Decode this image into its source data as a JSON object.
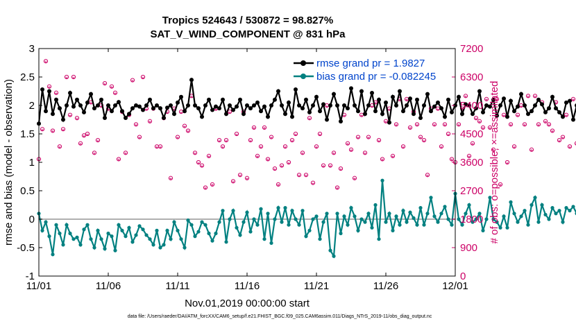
{
  "chart_data": {
    "type": "line",
    "title_line1": "Tropics 524643 / 530872 = 98.827%",
    "title_line2": "SAT_V_WIND_COMPONENT @ 831 hPa",
    "xlabel": "Nov.01,2019 00:00:00 start",
    "ylabel_left": "rmse and bias (model - observation)",
    "ylabel_right": "# of obs: o=possible; ×=assimilated",
    "x_ticks": [
      "11/01",
      "11/06",
      "11/11",
      "11/16",
      "11/21",
      "11/26",
      "12/01"
    ],
    "x_range_days": [
      0,
      30
    ],
    "ylim_left": [
      -1,
      3
    ],
    "y_ticks_left": [
      "-1",
      "-0.5",
      "0",
      "0.5",
      "1",
      "1.5",
      "2",
      "2.5",
      "3"
    ],
    "ylim_right": [
      0,
      7200
    ],
    "y_ticks_right": [
      "0",
      "900",
      "1800",
      "2700",
      "3600",
      "4500",
      "5400",
      "6300",
      "7200"
    ],
    "legend": {
      "rmse_label": "rmse grand pr = 1.9827",
      "bias_label": "bias grand pr = -0.082245",
      "placement": "top-right"
    },
    "colors": {
      "rmse": "#000000",
      "bias": "#008080",
      "obs": "#cc0066",
      "legend_text": "#0044cc",
      "zero_line": "#b0b0b0"
    },
    "x_step_days": 0.25,
    "rmse": [
      1.68,
      2.28,
      1.9,
      2.25,
      1.85,
      2.1,
      1.95,
      1.75,
      2.0,
      2.22,
      1.98,
      2.1,
      2.0,
      1.88,
      2.05,
      2.2,
      1.95,
      2.0,
      2.1,
      1.78,
      2.0,
      1.9,
      2.0,
      2.06,
      1.9,
      1.78,
      1.85,
      1.95,
      2.0,
      1.98,
      1.92,
      2.0,
      2.1,
      1.95,
      2.0,
      1.95,
      1.78,
      1.96,
      2.0,
      1.85,
      2.05,
      2.15,
      1.9,
      2.0,
      2.45,
      2.0,
      1.95,
      1.8,
      2.0,
      2.1,
      1.92,
      1.98,
      1.95,
      2.1,
      1.85,
      2.0,
      1.92,
      1.98,
      2.1,
      1.85,
      2.0,
      1.95,
      2.0,
      2.05,
      1.9,
      1.98,
      1.8,
      2.0,
      2.1,
      2.25,
      2.0,
      1.85,
      2.05,
      1.8,
      2.28,
      2.0,
      1.95,
      2.1,
      1.88,
      2.0,
      2.15,
      1.9,
      2.02,
      1.75,
      2.0,
      2.2,
      2.0,
      1.72,
      2.0,
      1.95,
      2.3,
      2.0,
      1.9,
      2.25,
      1.85,
      2.0,
      2.22,
      1.9,
      2.1,
      1.85,
      2.05,
      1.7,
      2.15,
      2.0,
      2.25,
      1.9,
      2.0,
      2.12,
      1.85,
      2.1,
      1.78,
      2.0,
      2.2,
      1.9,
      1.98,
      2.05,
      1.95,
      1.8,
      2.1,
      1.88,
      2.0,
      2.15,
      1.85,
      2.02,
      2.0,
      1.85,
      1.95,
      2.25,
      1.88,
      2.0,
      1.98,
      2.1,
      1.82,
      2.0,
      2.12,
      1.8,
      2.08,
      1.9,
      1.98,
      2.2,
      2.0,
      1.85,
      1.9,
      2.0,
      2.1,
      2.02,
      1.88,
      1.95,
      2.15,
      1.95,
      1.88,
      1.8,
      2.05,
      2.08,
      1.75,
      2.0,
      1.9,
      2.05,
      2.0,
      1.78,
      1.95,
      1.98,
      1.98,
      1.95
    ],
    "bias": [
      0.1,
      -0.2,
      -0.05,
      -0.3,
      -0.62,
      -0.1,
      -0.25,
      -0.45,
      -0.1,
      -0.25,
      -0.35,
      -0.32,
      -0.45,
      -0.18,
      -0.1,
      -0.35,
      -0.5,
      -0.2,
      -0.35,
      -0.52,
      -0.25,
      -0.3,
      -0.55,
      -0.1,
      -0.2,
      -0.3,
      -0.15,
      -0.4,
      -0.28,
      -0.12,
      -0.18,
      -0.28,
      -0.35,
      -0.45,
      -0.2,
      -0.5,
      -0.45,
      -0.2,
      -0.35,
      -0.05,
      -0.2,
      -0.35,
      -0.5,
      -0.02,
      -0.1,
      -0.3,
      -0.22,
      -0.05,
      -0.1,
      -0.25,
      -0.38,
      -0.25,
      -0.05,
      0.15,
      -0.4,
      0.0,
      0.15,
      -0.15,
      -0.28,
      -0.05,
      0.12,
      -0.22,
      0.0,
      -0.1,
      0.18,
      -0.35,
      0.1,
      -0.42,
      0.0,
      0.2,
      -0.05,
      0.2,
      -0.1,
      0.15,
      0.0,
      -0.1,
      0.15,
      -0.3,
      -0.2,
      0.0,
      0.05,
      -0.35,
      -0.05,
      0.1,
      -0.55,
      -0.65,
      0.1,
      -0.25,
      0.05,
      -0.1,
      0.2,
      0.05,
      -0.2,
      0.0,
      -0.05,
      0.1,
      -0.15,
      0.25,
      -0.35,
      0.68,
      -0.05,
      0.1,
      -0.2,
      0.05,
      -0.1,
      0.15,
      -0.05,
      0.12,
      0.02,
      -0.1,
      0.2,
      -0.1,
      0.1,
      0.38,
      0.05,
      -0.05,
      0.1,
      0.22,
      0.0,
      -0.1,
      0.45,
      0.0,
      -0.1,
      0.1,
      0.25,
      -0.05,
      0.0,
      0.1,
      -0.2,
      0.0,
      0.38,
      0.0,
      -0.05,
      -0.15,
      0.05,
      -0.15,
      0.3,
      0.1,
      -0.05,
      0.05,
      0.15,
      -0.1,
      0.25,
      0.38,
      -0.05,
      0.25,
      0.08,
      0.0,
      0.2,
      0.1,
      0.15,
      -0.05,
      0.2,
      0.15,
      0.22,
      0.1,
      0.3,
      -0.05,
      0.15,
      -0.1,
      0.05,
      -0.1,
      -0.3,
      -0.32,
      -0.35
    ],
    "obs_possible": [
      3700,
      4650,
      6800,
      6000,
      4600,
      5800,
      4100,
      4650,
      6300,
      5100,
      6300,
      5000,
      4200,
      4450,
      4500,
      5500,
      3900,
      4300,
      5400,
      6100,
      5300,
      6000,
      5800,
      3700,
      5200,
      3900,
      5100,
      6200,
      4800,
      4400,
      6300,
      5300,
      4900,
      5300,
      4100,
      4100,
      5000,
      5200,
      3100,
      5300,
      4400,
      5200,
      4750,
      4600,
      5700,
      3900,
      3600,
      3500,
      2800,
      3800,
      2900,
      5300,
      4300,
      4100,
      4300,
      5200,
      3000,
      4500,
      3200,
      5200,
      3100,
      4300,
      4700,
      3800,
      4100,
      4700,
      3700,
      4400,
      3400,
      2900,
      3500,
      4100,
      3600,
      4300,
      4500,
      3200,
      3900,
      3200,
      5000,
      2950,
      4100,
      4500,
      3500,
      5400,
      3500,
      3900,
      2800,
      3400,
      5100,
      4200,
      4000,
      3100,
      4400,
      5100,
      3900,
      4400,
      5400,
      5500,
      4300,
      3700,
      4900,
      5300,
      3800,
      4800,
      5600,
      4100,
      5600,
      4700,
      5200,
      4800,
      4400,
      4300,
      3200,
      5300,
      4800,
      5300,
      4100,
      4800,
      4500,
      3700,
      3600,
      4800,
      5300,
      5700,
      3800,
      4200,
      5000,
      4900,
      4700,
      5600,
      4700,
      4000,
      5600,
      2900,
      5100,
      3600,
      4800,
      4100,
      5100,
      5400,
      4800,
      5700,
      4000,
      5700,
      4800,
      5500,
      4900,
      4800,
      4600,
      5500,
      4300,
      4400,
      5100,
      4100,
      5600,
      4200,
      5600,
      4800,
      5600,
      4800,
      4200,
      4600,
      5000,
      4900,
      5300,
      3700,
      3700,
      4600,
      5500,
      4600,
      5000
    ],
    "obs_assim": [
      3650,
      4600,
      6750,
      5950,
      4550,
      5750,
      4050,
      4600,
      6250,
      5050,
      6250,
      4950,
      4150,
      4400,
      4450,
      5450,
      3850,
      4250,
      5350,
      6050,
      5250,
      5950,
      5750,
      3650,
      5150,
      3850,
      5050,
      6150,
      4750,
      4350,
      6250,
      5250,
      4850,
      5250,
      4050,
      4050,
      4950,
      5150,
      3050,
      5250,
      4350,
      5150,
      4700,
      4550,
      5650,
      3850,
      3550,
      3450,
      2750,
      3750,
      2850,
      5250,
      4250,
      4050,
      4250,
      5150,
      2950,
      4450,
      3150,
      5150,
      3050,
      4250,
      4650,
      3750,
      4050,
      4650,
      3650,
      4350,
      3350,
      2850,
      3450,
      4050,
      3550,
      4250,
      4450,
      3150,
      3850,
      3150,
      4950,
      2900,
      4050,
      4450,
      3450,
      5350,
      3450,
      3850,
      2750,
      3350,
      5050,
      4150,
      3950,
      3050,
      4350,
      5050,
      3850,
      4350,
      5350,
      5450,
      4250,
      3650,
      4850,
      5250,
      3750,
      4750,
      5550,
      4050,
      5550,
      4650,
      5150,
      4750,
      4350,
      4250,
      3150,
      5250,
      4750,
      5250,
      4050,
      4750,
      4450,
      3650,
      3550,
      4750,
      5250,
      5650,
      3750,
      4150,
      4950,
      4850,
      4650,
      5550,
      4650,
      3950,
      5550,
      2850,
      5050,
      3550,
      4750,
      4050,
      5050,
      5350,
      4750,
      5650,
      3950,
      5650,
      4750,
      5450,
      4850,
      4750,
      4550,
      5450,
      4250,
      4350,
      5050,
      4050,
      5550,
      4150,
      5550,
      4750,
      5550,
      4750,
      4150,
      4550,
      4950,
      4850,
      5250,
      3650,
      3650,
      4550,
      5450,
      4550,
      4950
    ]
  },
  "footer": {
    "data_file": "data file: /Users/raeder/DAI/ATM_forcXX/CAM6_setup/f.e21.FHIST_BGC.f09_025.CAM6assim.011/Diags_NTrS_2019-11/obs_diag_output.nc"
  }
}
